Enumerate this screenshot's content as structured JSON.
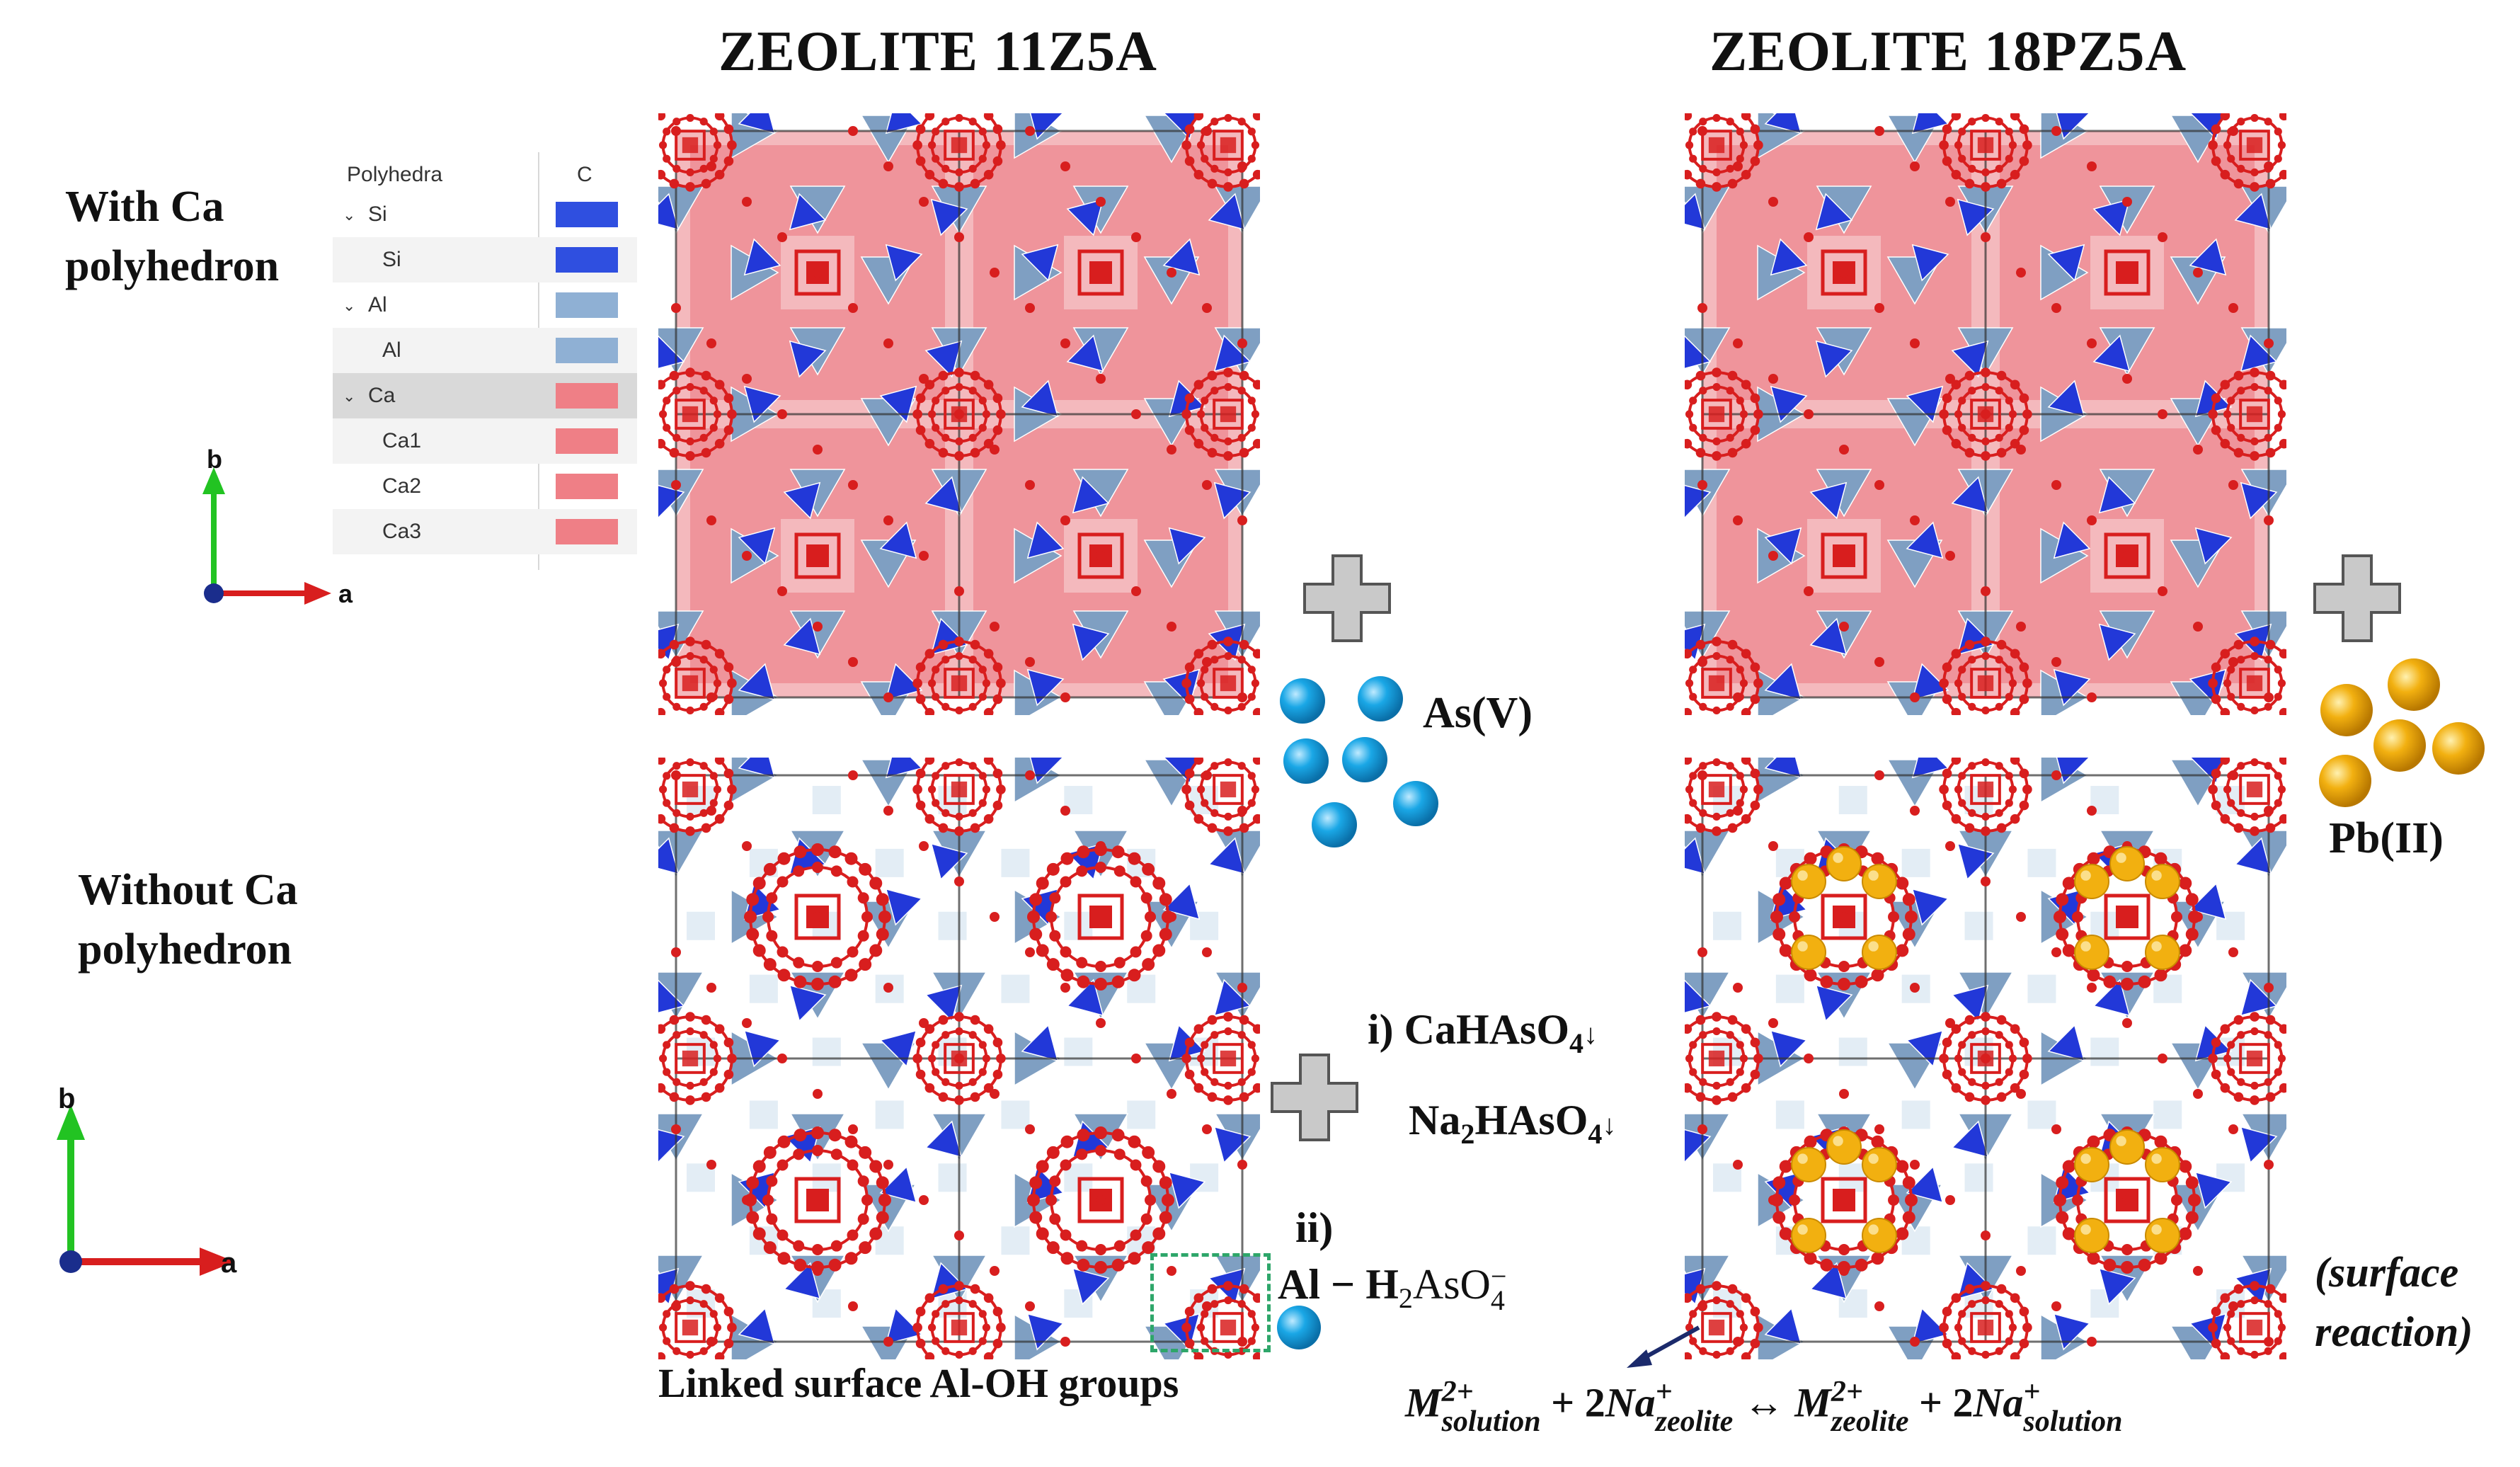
{
  "titles": {
    "left": "ZEOLITE 11Z5A",
    "right": "ZEOLITE 18PZ5A"
  },
  "side_labels": {
    "with_ca_line1": "With Ca",
    "with_ca_line2": "polyhedron",
    "without_ca_line1": "Without Ca",
    "without_ca_line2": "polyhedron"
  },
  "axes": {
    "top": {
      "b": "b",
      "a": "a"
    },
    "bottom": {
      "b": "b",
      "a": "a"
    }
  },
  "legend": {
    "header_name": "Polyhedra",
    "header_color": "C",
    "rows": [
      {
        "label": "Si",
        "level": 0,
        "color": "#2f4fe0"
      },
      {
        "label": "Si",
        "level": 1,
        "color": "#2f4fe0"
      },
      {
        "label": "Al",
        "level": 0,
        "color": "#8fb0d4"
      },
      {
        "label": "Al",
        "level": 1,
        "color": "#8fb0d4"
      },
      {
        "label": "Ca",
        "level": 0,
        "color": "#ef7f86"
      },
      {
        "label": "Ca1",
        "level": 1,
        "color": "#ef7f86"
      },
      {
        "label": "Ca2",
        "level": 1,
        "color": "#ef7f86"
      },
      {
        "label": "Ca3",
        "level": 1,
        "color": "#ef7f86"
      }
    ]
  },
  "species": {
    "as": "As(V)",
    "pb": "Pb(II)"
  },
  "reactions": {
    "i_label": "i)",
    "i_line1_main": "CaHAsO",
    "i_line1_sub": "4",
    "i_line1_arrow": "↓",
    "i_line2_main": "Na",
    "i_line2_sub1": "2",
    "i_line2_mid": "HAsO",
    "i_line2_sub2": "4",
    "i_line2_arrow": "↓",
    "ii_label": "ii)",
    "ii_al": "Al − H",
    "ii_sub1": "2",
    "ii_aso": "AsO",
    "ii_sup": "−",
    "ii_sub2": "4",
    "linked_caption": "Linked surface Al-OH groups",
    "surface_line1": "(surface",
    "surface_line2": "reaction)",
    "exchange": {
      "m1": "M",
      "m1_sup": "2+",
      "m1_sub": "solution",
      "plus1": "+ 2",
      "na1": "Na",
      "na1_sup": "+",
      "na1_sub": "zeolite",
      "arrow": "↔",
      "m2": "M",
      "m2_sup": "2+",
      "m2_sub": "zeolite",
      "plus2": "+ 2",
      "na2": "Na",
      "na2_sup": "+",
      "na2_sub": "solution"
    }
  },
  "colors": {
    "si": "#2238d8",
    "al": "#7f9fc2",
    "ca": "#ef8088",
    "oxygen": "#d81e1e",
    "as_ion": "#1aa7e6",
    "pb_ion": "#f2b010",
    "plus": "#c8c8c8",
    "dashed_box": "#2ea66a"
  }
}
